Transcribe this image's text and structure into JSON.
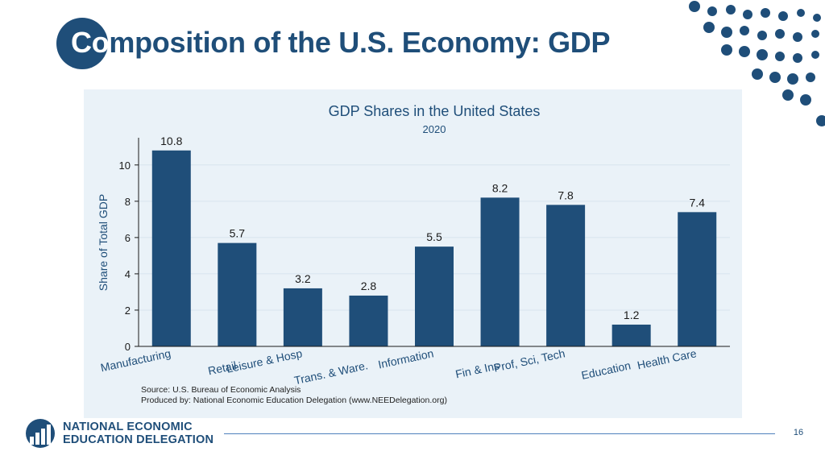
{
  "slide": {
    "title_first": "Co",
    "title_rest": "mposition of the U.S. Economy: GDP",
    "page_number": "16"
  },
  "logo": {
    "line1": "NATIONAL ECONOMIC",
    "line2": "EDUCATION DELEGATION"
  },
  "colors": {
    "brand": "#1f4e79",
    "bar": "#1f4e79",
    "panel": "#eaf2f8",
    "accent_line": "#4f81bd"
  },
  "chart_data": {
    "type": "bar",
    "title": "GDP Shares in the United States",
    "subtitle": "2020",
    "xlabel": "",
    "ylabel": "Share of Total GDP",
    "ylim": [
      0,
      11.5
    ],
    "yticks": [
      0,
      2,
      4,
      6,
      8,
      10
    ],
    "grid": true,
    "categories": [
      "Manufacturing",
      "Retail",
      "Leisure & Hosp",
      "Trans. & Ware.",
      "Information",
      "Fin & Ins",
      "Prof, Sci, Tech",
      "Education",
      "Health Care"
    ],
    "values": [
      10.8,
      5.7,
      3.2,
      2.8,
      5.5,
      8.2,
      7.8,
      1.2,
      7.4
    ],
    "data_labels": [
      "10.8",
      "5.7",
      "3.2",
      "2.8",
      "5.5",
      "8.2",
      "7.8",
      "1.2",
      "7.4"
    ],
    "source_lines": [
      "Source: U.S. Bureau of Economic Analysis",
      "Produced by: National Economic Education Delegation (www.NEEDelegation.org)"
    ]
  }
}
